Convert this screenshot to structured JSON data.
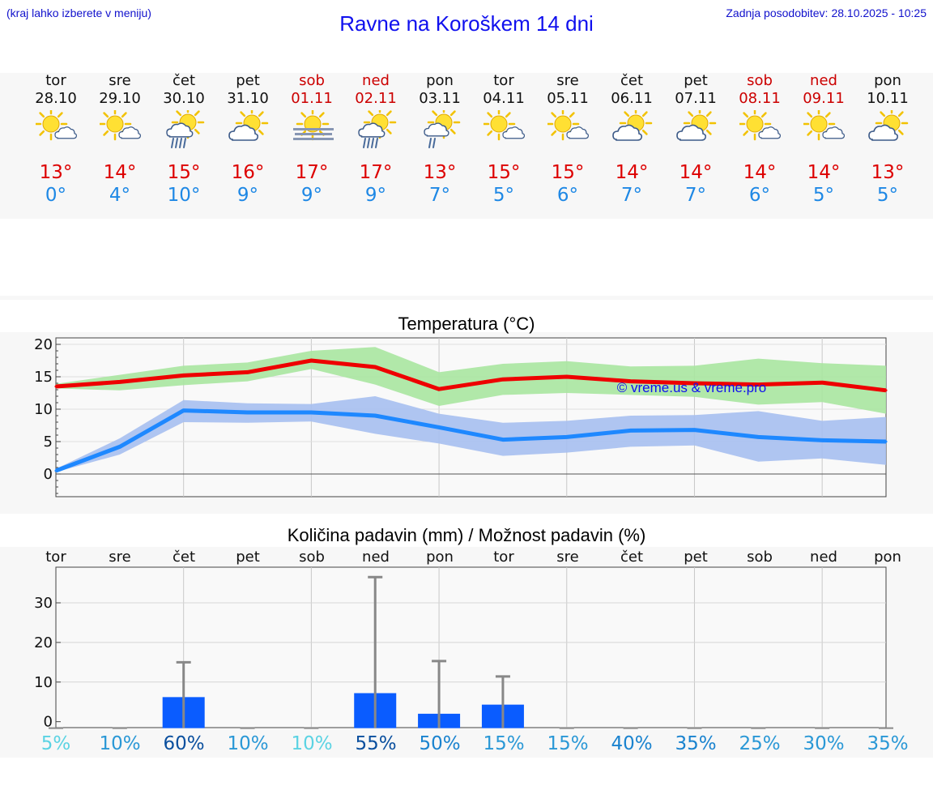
{
  "header": {
    "hint": "(kraj lahko izberete v meniju)",
    "title": "Ravne na Koroškem 14 dni",
    "updated_label": "Zadnja posodobitev:",
    "updated_value": "28.10.2025 - 10:25"
  },
  "colors": {
    "max_line": "#ee0000",
    "min_line": "#1e88ff",
    "max_band": "#a8e6a0",
    "min_band": "#a6bff0",
    "bar": "#0a5cff",
    "whisker": "#888888"
  },
  "days": [
    {
      "name": "tor",
      "date": "28.10",
      "weekend": false,
      "icon": "partly-cloudy-icon",
      "max": "13°",
      "min": "0°"
    },
    {
      "name": "sre",
      "date": "29.10",
      "weekend": false,
      "icon": "partly-cloudy-icon",
      "max": "14°",
      "min": "4°"
    },
    {
      "name": "čet",
      "date": "30.10",
      "weekend": false,
      "icon": "sun-cloud-rain-icon",
      "max": "15°",
      "min": "10°"
    },
    {
      "name": "pet",
      "date": "31.10",
      "weekend": false,
      "icon": "cloudy-sun-icon",
      "max": "16°",
      "min": "9°"
    },
    {
      "name": "sob",
      "date": "01.11",
      "weekend": true,
      "icon": "sun-fog-icon",
      "max": "17°",
      "min": "9°"
    },
    {
      "name": "ned",
      "date": "02.11",
      "weekend": true,
      "icon": "sun-cloud-rain-icon",
      "max": "17°",
      "min": "9°"
    },
    {
      "name": "pon",
      "date": "03.11",
      "weekend": false,
      "icon": "sun-cloud-drizzle-icon",
      "max": "13°",
      "min": "7°"
    },
    {
      "name": "tor",
      "date": "04.11",
      "weekend": false,
      "icon": "partly-cloudy-icon",
      "max": "15°",
      "min": "5°"
    },
    {
      "name": "sre",
      "date": "05.11",
      "weekend": false,
      "icon": "partly-cloudy-icon",
      "max": "15°",
      "min": "6°"
    },
    {
      "name": "čet",
      "date": "06.11",
      "weekend": false,
      "icon": "cloudy-sun-icon",
      "max": "14°",
      "min": "7°"
    },
    {
      "name": "pet",
      "date": "07.11",
      "weekend": false,
      "icon": "cloudy-sun-icon",
      "max": "14°",
      "min": "7°"
    },
    {
      "name": "sob",
      "date": "08.11",
      "weekend": true,
      "icon": "partly-cloudy-icon",
      "max": "14°",
      "min": "6°"
    },
    {
      "name": "ned",
      "date": "09.11",
      "weekend": true,
      "icon": "partly-cloudy-icon",
      "max": "14°",
      "min": "5°"
    },
    {
      "name": "pon",
      "date": "10.11",
      "weekend": false,
      "icon": "cloudy-sun-icon",
      "max": "13°",
      "min": "5°"
    }
  ],
  "chart_data": [
    {
      "type": "line",
      "title": "Temperatura (°C)",
      "watermark": "© vreme.us & vreme.pro",
      "ylim": [
        -3.5,
        21
      ],
      "yticks": [
        0,
        5,
        10,
        15,
        20
      ],
      "grid": true,
      "x": [
        0,
        1,
        2,
        3,
        4,
        5,
        6,
        7,
        8,
        9,
        10,
        11,
        12,
        13
      ],
      "series": [
        {
          "name": "max",
          "values": [
            13.5,
            14.2,
            15.2,
            15.7,
            17.5,
            16.5,
            13.1,
            14.6,
            15.0,
            14.3,
            14.0,
            13.8,
            14.1,
            12.9
          ],
          "band_low": [
            13.2,
            12.9,
            13.7,
            14.3,
            16.2,
            13.8,
            10.5,
            12.2,
            12.5,
            12.2,
            11.9,
            10.7,
            11.1,
            9.3
          ],
          "band_high": [
            13.9,
            15.3,
            16.7,
            17.2,
            19.0,
            19.6,
            15.7,
            17.0,
            17.4,
            16.6,
            16.7,
            17.8,
            17.1,
            16.7
          ]
        },
        {
          "name": "min",
          "values": [
            0.5,
            4.2,
            9.8,
            9.5,
            9.5,
            9.0,
            7.2,
            5.3,
            5.7,
            6.7,
            6.8,
            5.7,
            5.2,
            5.0
          ],
          "band_low": [
            0.3,
            3.0,
            8.0,
            7.9,
            8.1,
            6.2,
            4.7,
            2.8,
            3.3,
            4.2,
            4.4,
            1.9,
            2.4,
            1.4
          ],
          "band_high": [
            0.8,
            5.5,
            11.4,
            10.9,
            10.8,
            12.0,
            9.3,
            7.9,
            8.2,
            9.0,
            9.1,
            9.7,
            8.2,
            8.8
          ]
        }
      ]
    },
    {
      "type": "bar",
      "title": "Količina padavin (mm) / Možnost padavin (%)",
      "categories": [
        "tor",
        "sre",
        "čet",
        "pet",
        "sob",
        "ned",
        "pon",
        "tor",
        "sre",
        "čet",
        "pet",
        "sob",
        "ned",
        "pon"
      ],
      "values": [
        0,
        0,
        6.2,
        0,
        0,
        7.2,
        2.0,
        4.3,
        0,
        0,
        0,
        0,
        0,
        0
      ],
      "whisker_max": [
        0,
        0,
        15.0,
        0,
        0,
        36.5,
        15.3,
        11.4,
        0,
        0,
        0,
        0,
        0,
        0
      ],
      "ylim": [
        -1.5,
        39
      ],
      "yticks": [
        0,
        10,
        20,
        30
      ],
      "chance": [
        "5%",
        "10%",
        "60%",
        "10%",
        "10%",
        "55%",
        "50%",
        "15%",
        "15%",
        "40%",
        "35%",
        "25%",
        "30%",
        "35%"
      ],
      "chance_colors": [
        "#5bd3e3",
        "#2a98d6",
        "#0a4f9e",
        "#2a98d6",
        "#5bd3e3",
        "#0a4f9e",
        "#1a83cf",
        "#2a98d6",
        "#2a98d6",
        "#1a83cf",
        "#1a83cf",
        "#2a98d6",
        "#2a98d6",
        "#2a98d6"
      ]
    }
  ]
}
